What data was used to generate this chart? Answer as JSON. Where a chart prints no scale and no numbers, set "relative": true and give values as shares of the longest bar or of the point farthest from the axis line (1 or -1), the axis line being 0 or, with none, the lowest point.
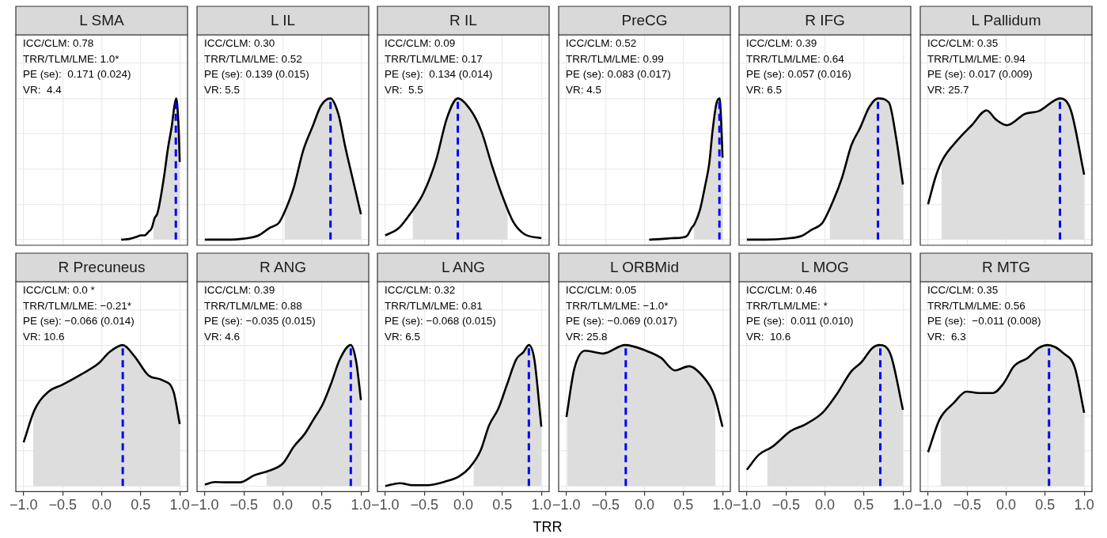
{
  "chart_data": [
    {
      "type": "line",
      "title": "L SMA",
      "relative": true,
      "marker": "none",
      "grid": true,
      "tick_labels": false,
      "xlim": [
        -1.1,
        1.1
      ],
      "xticks": [
        {
          "value": -1,
          "label": null
        },
        {
          "value": -0.5,
          "label": null
        },
        {
          "value": 0,
          "label": null
        },
        {
          "value": 0.5,
          "label": null
        },
        {
          "value": 1,
          "label": null
        }
      ],
      "series": [
        {
          "type": "area",
          "color": "#dddddd",
          "x": [
            0.66,
            0.68,
            0.71,
            0.74,
            0.8,
            0.85,
            0.9,
            0.93,
            0.955,
            0.985,
            1.0
          ],
          "values": [
            0.118,
            0.155,
            0.18,
            0.25,
            0.45,
            0.65,
            0.81,
            0.94,
            1.0,
            0.8,
            0.55
          ]
        },
        {
          "color": "#000000",
          "x": [
            0.25,
            0.35,
            0.45,
            0.5,
            0.55,
            0.6,
            0.64,
            0.68,
            0.71,
            0.74,
            0.8,
            0.85,
            0.9,
            0.93,
            0.955,
            0.985,
            1.0
          ],
          "values": [
            0,
            0.004,
            0.02,
            0.03,
            0.03,
            0.055,
            0.08,
            0.155,
            0.18,
            0.25,
            0.45,
            0.65,
            0.81,
            0.94,
            1.0,
            0.8,
            0.55
          ]
        }
      ],
      "ref_lines": [
        {
          "axis": "x",
          "value": 0.95,
          "color": "#0000ff",
          "line_style": "dashed"
        }
      ],
      "annotations": [
        "ICC/CLM: 0.78",
        "TRR/TLM/LME: 1.0*",
        "PE (se):  0.171 (0.024)",
        "VR:  4.4"
      ]
    },
    {
      "type": "line",
      "title": "L IL",
      "relative": true,
      "marker": "none",
      "grid": true,
      "tick_labels": false,
      "xlim": [
        -1.1,
        1.1
      ],
      "xticks": [
        {
          "value": -1,
          "label": null
        },
        {
          "value": -0.5,
          "label": null
        },
        {
          "value": 0,
          "label": null
        },
        {
          "value": 0.5,
          "label": null
        },
        {
          "value": 1,
          "label": null
        }
      ],
      "series": [
        {
          "type": "area",
          "color": "#dddddd",
          "x": [
            0.02,
            0.045,
            0.14,
            0.26,
            0.38,
            0.49,
            0.61,
            0.71,
            0.8,
            0.92,
            1.0
          ],
          "values": [
            0.198,
            0.226,
            0.37,
            0.63,
            0.8,
            0.95,
            1.0,
            0.89,
            0.655,
            0.37,
            0.18
          ]
        },
        {
          "color": "#000000",
          "x": [
            -1,
            -0.73,
            -0.5,
            -0.31,
            -0.17,
            -0.05,
            0.045,
            0.14,
            0.26,
            0.38,
            0.49,
            0.61,
            0.71,
            0.8,
            0.92,
            1.0
          ],
          "values": [
            0,
            0,
            0.007,
            0.03,
            0.083,
            0.12,
            0.226,
            0.37,
            0.63,
            0.8,
            0.95,
            1.0,
            0.89,
            0.655,
            0.37,
            0.18
          ]
        }
      ],
      "ref_lines": [
        {
          "axis": "x",
          "value": 0.61,
          "color": "#0000ff",
          "line_style": "dashed"
        }
      ],
      "annotations": [
        "ICC/CLM: 0.30",
        "TRR/TLM/LME: 0.52",
        "PE (se): 0.139 (0.015)",
        "VR: 5.5"
      ]
    },
    {
      "type": "line",
      "title": "R IL",
      "relative": true,
      "marker": "none",
      "grid": true,
      "tick_labels": false,
      "xlim": [
        -1.1,
        1.1
      ],
      "xticks": [
        {
          "value": -1,
          "label": null
        },
        {
          "value": -0.5,
          "label": null
        },
        {
          "value": 0,
          "label": null
        },
        {
          "value": 0.5,
          "label": null
        },
        {
          "value": 1,
          "label": null
        }
      ],
      "series": [
        {
          "type": "area",
          "color": "#dddddd",
          "x": [
            -0.65,
            -0.51,
            -0.35,
            -0.21,
            -0.07,
            0.09,
            0.23,
            0.37,
            0.5,
            0.57
          ],
          "values": [
            0.21,
            0.33,
            0.56,
            0.86,
            1.0,
            0.92,
            0.77,
            0.52,
            0.31,
            0.22
          ]
        },
        {
          "color": "#000000",
          "x": [
            -1,
            -0.83,
            -0.67,
            -0.51,
            -0.35,
            -0.21,
            -0.07,
            0.09,
            0.23,
            0.37,
            0.5,
            0.64,
            0.78,
            1.0
          ],
          "values": [
            0.03,
            0.08,
            0.19,
            0.33,
            0.56,
            0.86,
            1.0,
            0.92,
            0.77,
            0.52,
            0.31,
            0.126,
            0.04,
            0.01
          ]
        }
      ],
      "ref_lines": [
        {
          "axis": "x",
          "value": -0.07,
          "color": "#0000ff",
          "line_style": "dashed"
        }
      ],
      "annotations": [
        "ICC/CLM: 0.09",
        "TRR/TLM/LME: 0.17",
        "PE (se):  0.134 (0.014)",
        "VR:  5.5"
      ]
    },
    {
      "type": "line",
      "title": "PreCG",
      "relative": true,
      "marker": "none",
      "grid": true,
      "tick_labels": false,
      "xlim": [
        -1.1,
        1.1
      ],
      "xticks": [
        {
          "value": -1,
          "label": null
        },
        {
          "value": -0.5,
          "label": null
        },
        {
          "value": 0,
          "label": null
        },
        {
          "value": 0.5,
          "label": null
        },
        {
          "value": 1,
          "label": null
        }
      ],
      "series": [
        {
          "type": "area",
          "color": "#dddddd",
          "x": [
            0.63,
            0.64,
            0.71,
            0.78,
            0.83,
            0.87,
            0.92,
            0.963,
            0.985,
            1.0
          ],
          "values": [
            0.1,
            0.11,
            0.21,
            0.39,
            0.54,
            0.76,
            0.96,
            1.0,
            0.8,
            0.58
          ]
        },
        {
          "color": "#000000",
          "x": [
            0.06,
            0.21,
            0.35,
            0.48,
            0.55,
            0.6,
            0.64,
            0.71,
            0.78,
            0.83,
            0.87,
            0.92,
            0.963,
            0.985,
            1.0
          ],
          "values": [
            0,
            0.004,
            0.01,
            0.015,
            0.03,
            0.08,
            0.11,
            0.21,
            0.39,
            0.54,
            0.76,
            0.96,
            1.0,
            0.8,
            0.58
          ]
        }
      ],
      "ref_lines": [
        {
          "axis": "x",
          "value": 0.96,
          "color": "#0000ff",
          "line_style": "dashed"
        }
      ],
      "annotations": [
        "ICC/CLM: 0.52",
        "TRR/TLM/LME: 0.99",
        "PE (se): 0.083 (0.017)",
        "VR: 4.5"
      ]
    },
    {
      "type": "line",
      "title": "R IFG",
      "relative": true,
      "marker": "none",
      "grid": true,
      "tick_labels": false,
      "xlim": [
        -1.1,
        1.1
      ],
      "xticks": [
        {
          "value": -1,
          "label": null
        },
        {
          "value": -0.5,
          "label": null
        },
        {
          "value": 0,
          "label": null
        },
        {
          "value": 0.5,
          "label": null
        },
        {
          "value": 1,
          "label": null
        }
      ],
      "series": [
        {
          "type": "area",
          "color": "#dddddd",
          "x": [
            0.06,
            0.11,
            0.22,
            0.34,
            0.45,
            0.57,
            0.68,
            0.82,
            0.91,
            1.0
          ],
          "values": [
            0.22,
            0.28,
            0.44,
            0.67,
            0.79,
            0.94,
            1.0,
            0.97,
            0.73,
            0.39
          ]
        },
        {
          "color": "#000000",
          "x": [
            -1,
            -0.76,
            -0.49,
            -0.3,
            -0.17,
            -0.03,
            0.11,
            0.22,
            0.34,
            0.45,
            0.57,
            0.68,
            0.82,
            0.91,
            1.0
          ],
          "values": [
            0,
            0,
            0.008,
            0.026,
            0.07,
            0.12,
            0.28,
            0.44,
            0.67,
            0.79,
            0.94,
            1.0,
            0.97,
            0.73,
            0.39
          ]
        }
      ],
      "ref_lines": [
        {
          "axis": "x",
          "value": 0.68,
          "color": "#0000ff",
          "line_style": "dashed"
        }
      ],
      "annotations": [
        "ICC/CLM: 0.39",
        "TRR/TLM/LME: 0.64",
        "PE (se): 0.057 (0.016)",
        "VR: 6.5"
      ]
    },
    {
      "type": "line",
      "title": "L Pallidum",
      "relative": true,
      "marker": "none",
      "grid": true,
      "tick_labels": false,
      "xlim": [
        -1.1,
        1.1
      ],
      "xticks": [
        {
          "value": -1,
          "label": null
        },
        {
          "value": -0.5,
          "label": null
        },
        {
          "value": 0,
          "label": null
        },
        {
          "value": 0.5,
          "label": null
        },
        {
          "value": 1,
          "label": null
        }
      ],
      "series": [
        {
          "type": "area",
          "color": "#dddddd",
          "x": [
            -0.83,
            -0.81,
            -0.63,
            -0.44,
            -0.25,
            -0.13,
            0.01,
            0.24,
            0.42,
            0.695,
            0.83,
            1.0
          ],
          "values": [
            0.54,
            0.57,
            0.7,
            0.81,
            0.915,
            0.85,
            0.81,
            0.89,
            0.91,
            1.0,
            0.915,
            0.46
          ]
        },
        {
          "color": "#000000",
          "x": [
            -1,
            -0.9,
            -0.81,
            -0.63,
            -0.44,
            -0.25,
            -0.13,
            0.01,
            0.24,
            0.42,
            0.695,
            0.83,
            1.0
          ],
          "values": [
            0.25,
            0.45,
            0.57,
            0.7,
            0.81,
            0.915,
            0.85,
            0.81,
            0.89,
            0.91,
            1.0,
            0.915,
            0.46
          ]
        }
      ],
      "ref_lines": [
        {
          "axis": "x",
          "value": 0.69,
          "color": "#0000ff",
          "line_style": "dashed"
        }
      ],
      "annotations": [
        "ICC/CLM: 0.35",
        "TRR/TLM/LME: 0.94",
        "PE (se): 0.017 (0.009)",
        "VR: 25.7"
      ]
    },
    {
      "type": "line",
      "title": "R Precuneus",
      "relative": true,
      "marker": "none",
      "grid": true,
      "tick_labels": "x",
      "xlim": [
        -1.1,
        1.1
      ],
      "xticks": [
        {
          "value": -1,
          "label": "−1.0"
        },
        {
          "value": -0.5,
          "label": "−0.5"
        },
        {
          "value": 0,
          "label": "0.0"
        },
        {
          "value": 0.5,
          "label": "0.5"
        },
        {
          "value": 1,
          "label": "1.0"
        }
      ],
      "series": [
        {
          "type": "area",
          "color": "#dddddd",
          "x": [
            -0.88,
            -0.86,
            -0.68,
            -0.5,
            -0.27,
            -0.04,
            0.1,
            0.27,
            0.42,
            0.6,
            0.78,
            0.92,
            1.0
          ],
          "values": [
            0.51,
            0.54,
            0.67,
            0.72,
            0.79,
            0.87,
            0.95,
            1.0,
            0.92,
            0.785,
            0.75,
            0.67,
            0.44
          ]
        },
        {
          "color": "#000000",
          "x": [
            -1,
            -0.86,
            -0.68,
            -0.5,
            -0.27,
            -0.04,
            0.1,
            0.27,
            0.42,
            0.6,
            0.78,
            0.92,
            1.0
          ],
          "values": [
            0.31,
            0.54,
            0.67,
            0.72,
            0.79,
            0.87,
            0.95,
            1.0,
            0.92,
            0.785,
            0.75,
            0.67,
            0.44
          ]
        }
      ],
      "ref_lines": [
        {
          "axis": "x",
          "value": 0.27,
          "color": "#0000ff",
          "line_style": "dashed"
        }
      ],
      "annotations": [
        "ICC/CLM: 0.0 *",
        "TRR/TLM/LME: −0.21*",
        "PE (se): −0.066 (0.014)",
        "VR: 10.6"
      ]
    },
    {
      "type": "line",
      "title": "R ANG",
      "relative": true,
      "marker": "none",
      "grid": true,
      "tick_labels": "x",
      "xlim": [
        -1.1,
        1.1
      ],
      "xticks": [
        {
          "value": -1,
          "label": "−1.0"
        },
        {
          "value": -0.5,
          "label": "−0.5"
        },
        {
          "value": 0,
          "label": "0.0"
        },
        {
          "value": 0.5,
          "label": "0.5"
        },
        {
          "value": 1,
          "label": "1.0"
        }
      ],
      "series": [
        {
          "type": "area",
          "color": "#dddddd",
          "x": [
            -0.21,
            -0.18,
            0,
            0.14,
            0.28,
            0.39,
            0.51,
            0.62,
            0.73,
            0.87,
            0.94,
            1.0
          ],
          "values": [
            0.1,
            0.108,
            0.16,
            0.28,
            0.37,
            0.47,
            0.58,
            0.73,
            0.9,
            1.0,
            0.88,
            0.61
          ]
        },
        {
          "color": "#000000",
          "x": [
            -1,
            -0.87,
            -0.73,
            -0.55,
            -0.37,
            -0.18,
            0,
            0.14,
            0.28,
            0.39,
            0.51,
            0.62,
            0.73,
            0.87,
            0.94,
            1.0
          ],
          "values": [
            0.01,
            0.028,
            0.026,
            0.026,
            0.075,
            0.108,
            0.16,
            0.28,
            0.37,
            0.47,
            0.58,
            0.73,
            0.9,
            1.0,
            0.88,
            0.61
          ]
        }
      ],
      "ref_lines": [
        {
          "axis": "x",
          "value": 0.87,
          "color": "#0000ff",
          "line_style": "dashed"
        }
      ],
      "annotations": [
        "ICC/CLM: 0.39",
        "TRR/TLM/LME: 0.88",
        "PE (se): −0.035 (0.015)",
        "VR: 4.6"
      ]
    },
    {
      "type": "line",
      "title": "L ANG",
      "xlabel": "TRR",
      "relative": true,
      "marker": "none",
      "grid": true,
      "tick_labels": "x",
      "xlim": [
        -1.1,
        1.1
      ],
      "xticks": [
        {
          "value": -1,
          "label": "−1.0"
        },
        {
          "value": -0.5,
          "label": "−0.5"
        },
        {
          "value": 0,
          "label": "0.0"
        },
        {
          "value": 0.5,
          "label": "0.5"
        },
        {
          "value": 1,
          "label": "1.0"
        }
      ],
      "series": [
        {
          "type": "area",
          "color": "#dddddd",
          "x": [
            0.13,
            0.22,
            0.33,
            0.45,
            0.56,
            0.68,
            0.77,
            0.84,
            0.91,
            1.0
          ],
          "values": [
            0.17,
            0.25,
            0.43,
            0.55,
            0.72,
            0.9,
            0.95,
            1.0,
            0.9,
            0.42
          ]
        },
        {
          "color": "#000000",
          "x": [
            -1,
            -0.81,
            -0.65,
            -0.46,
            -0.24,
            -0.05,
            0.08,
            0.22,
            0.33,
            0.45,
            0.56,
            0.68,
            0.77,
            0.84,
            0.91,
            1.0
          ],
          "values": [
            0,
            0.02,
            0.006,
            0.006,
            0.03,
            0.07,
            0.13,
            0.25,
            0.43,
            0.55,
            0.72,
            0.9,
            0.95,
            1.0,
            0.9,
            0.42
          ]
        }
      ],
      "ref_lines": [
        {
          "axis": "x",
          "value": 0.84,
          "color": "#0000ff",
          "line_style": "dashed"
        }
      ],
      "annotations": [
        "ICC/CLM: 0.32",
        "TRR/TLM/LME: 0.81",
        "PE (se): −0.068 (0.015)",
        "VR: 6.5"
      ]
    },
    {
      "type": "line",
      "title": "L ORBMid",
      "relative": true,
      "marker": "none",
      "grid": true,
      "tick_labels": "x",
      "xlim": [
        -1.1,
        1.1
      ],
      "xticks": [
        {
          "value": -1,
          "label": "−1.0"
        },
        {
          "value": -0.5,
          "label": "−0.5"
        },
        {
          "value": 0,
          "label": "0.0"
        },
        {
          "value": 0.5,
          "label": "0.5"
        },
        {
          "value": 1,
          "label": "1.0"
        }
      ],
      "series": [
        {
          "type": "area",
          "color": "#dddddd",
          "x": [
            -0.99,
            -0.9,
            -0.76,
            -0.53,
            -0.25,
            0.02,
            0.21,
            0.39,
            0.57,
            0.76,
            0.89,
            0.91
          ],
          "values": [
            0.52,
            0.83,
            0.96,
            0.94,
            1.0,
            0.96,
            0.91,
            0.82,
            0.85,
            0.77,
            0.65,
            0.61
          ]
        },
        {
          "color": "#000000",
          "x": [
            -1,
            -0.9,
            -0.76,
            -0.53,
            -0.25,
            0.02,
            0.21,
            0.39,
            0.57,
            0.76,
            0.89,
            1.0
          ],
          "values": [
            0.49,
            0.83,
            0.96,
            0.94,
            1.0,
            0.96,
            0.91,
            0.82,
            0.85,
            0.77,
            0.65,
            0.42
          ]
        }
      ],
      "ref_lines": [
        {
          "axis": "x",
          "value": -0.24,
          "color": "#0000ff",
          "line_style": "dashed"
        }
      ],
      "annotations": [
        "ICC/CLM: 0.05",
        "TRR/TLM/LME: −1.0*",
        "PE (se): −0.069 (0.017)",
        "VR: 25.8"
      ]
    },
    {
      "type": "line",
      "title": "L MOG",
      "relative": true,
      "marker": "none",
      "grid": true,
      "tick_labels": "x",
      "xlim": [
        -1.1,
        1.1
      ],
      "xticks": [
        {
          "value": -1,
          "label": "−1.0"
        },
        {
          "value": -0.5,
          "label": "−0.5"
        },
        {
          "value": 0,
          "label": "0.0"
        },
        {
          "value": 0.5,
          "label": "0.5"
        },
        {
          "value": 1,
          "label": "1.0"
        }
      ],
      "series": [
        {
          "type": "area",
          "color": "#dddddd",
          "x": [
            -0.74,
            -0.67,
            -0.44,
            -0.26,
            -0.03,
            0.15,
            0.34,
            0.47,
            0.61,
            0.7,
            0.84,
            1.0
          ],
          "values": [
            0.26,
            0.28,
            0.39,
            0.435,
            0.52,
            0.65,
            0.815,
            0.88,
            0.98,
            1.0,
            0.935,
            0.54
          ]
        },
        {
          "color": "#000000",
          "x": [
            -1,
            -0.85,
            -0.67,
            -0.44,
            -0.26,
            -0.03,
            0.15,
            0.34,
            0.47,
            0.61,
            0.7,
            0.84,
            1.0
          ],
          "values": [
            0.115,
            0.22,
            0.28,
            0.39,
            0.435,
            0.52,
            0.65,
            0.815,
            0.88,
            0.98,
            1.0,
            0.935,
            0.54
          ]
        }
      ],
      "ref_lines": [
        {
          "axis": "x",
          "value": 0.71,
          "color": "#0000ff",
          "line_style": "dashed"
        }
      ],
      "annotations": [
        "ICC/CLM: 0.46",
        "TRR/TLM/LME: *",
        "PE (se):  0.011 (0.010)",
        "VR:  10.6"
      ]
    },
    {
      "type": "line",
      "title": "R MTG",
      "relative": true,
      "marker": "none",
      "grid": true,
      "tick_labels": "x",
      "xlim": [
        -1.1,
        1.1
      ],
      "xticks": [
        {
          "value": -1,
          "label": "−1.0"
        },
        {
          "value": -0.5,
          "label": "−0.5"
        },
        {
          "value": 0,
          "label": "0.0"
        },
        {
          "value": 0.5,
          "label": "0.5"
        },
        {
          "value": 1,
          "label": "1.0"
        }
      ],
      "series": [
        {
          "type": "area",
          "color": "#dddddd",
          "x": [
            -0.84,
            -0.67,
            -0.51,
            -0.35,
            -0.17,
            -0.03,
            0.1,
            0.28,
            0.42,
            0.535,
            0.74,
            0.88,
            1.0
          ],
          "values": [
            0.48,
            0.59,
            0.67,
            0.66,
            0.66,
            0.73,
            0.85,
            0.91,
            0.98,
            1.0,
            0.94,
            0.84,
            0.52
          ]
        },
        {
          "color": "#000000",
          "x": [
            -1,
            -0.85,
            -0.67,
            -0.51,
            -0.35,
            -0.17,
            -0.03,
            0.1,
            0.28,
            0.42,
            0.535,
            0.74,
            0.88,
            1.0
          ],
          "values": [
            0.24,
            0.475,
            0.59,
            0.67,
            0.66,
            0.66,
            0.73,
            0.85,
            0.91,
            0.98,
            1.0,
            0.94,
            0.84,
            0.52
          ]
        }
      ],
      "ref_lines": [
        {
          "axis": "x",
          "value": 0.55,
          "color": "#0000ff",
          "line_style": "dashed"
        }
      ],
      "annotations": [
        "ICC/CLM: 0.35",
        "TRR/TLM/LME: 0.56",
        "PE (se):  −0.011 (0.008)",
        "VR:  6.3"
      ]
    }
  ]
}
